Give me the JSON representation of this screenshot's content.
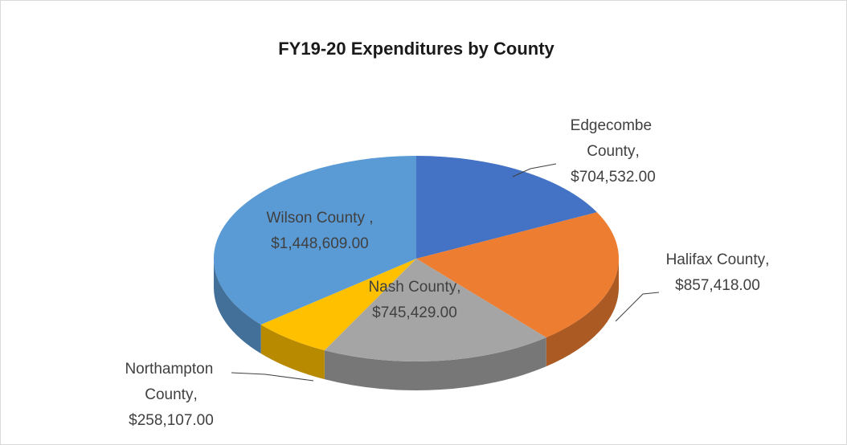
{
  "chart_data": {
    "type": "pie",
    "title": "FY19-20 Expenditures by County",
    "categories": [
      "Edgecombe County",
      "Halifax County",
      "Nash County",
      "Northampton County",
      "Wilson County "
    ],
    "values": [
      704532,
      857418,
      745429,
      258107,
      1448609
    ],
    "value_labels": [
      "$704,532.00",
      "$857,418.00",
      "$745,429.00",
      "$258,107.00",
      "$1,448,609.00"
    ],
    "separator": ",",
    "colors": [
      "#4472c4",
      "#ed7d31",
      "#a5a5a5",
      "#ffc000",
      "#5b9bd5"
    ],
    "three_d": true
  }
}
